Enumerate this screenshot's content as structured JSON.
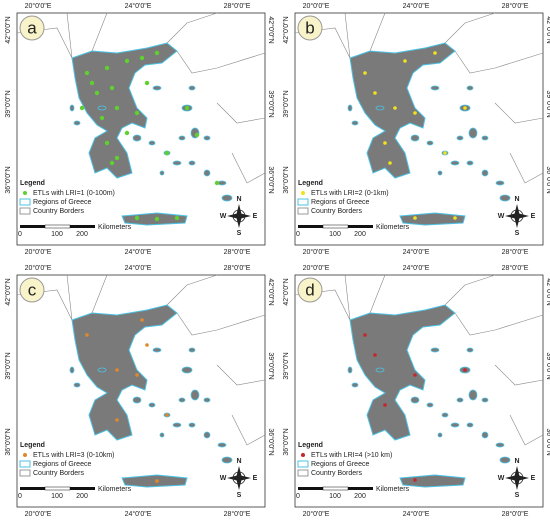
{
  "panels": [
    {
      "label": "a",
      "legend_item": "ETLs with LRI=1 (0-100m)",
      "color": "#5fd12f"
    },
    {
      "label": "b",
      "legend_item": "ETLs with LRI=2 (0-1km)",
      "color": "#f2e21c"
    },
    {
      "label": "c",
      "legend_item": "ETLs with LRI=3 (0-10km)",
      "color": "#e0892b"
    },
    {
      "label": "d",
      "legend_item": "ETLs with LRI=4 (>10 km)",
      "color": "#c2282e"
    }
  ],
  "lon_labels": [
    "20°0'0\"E",
    "24°0'0\"E",
    "28°0'0\"E"
  ],
  "lat_labels": [
    "42°0'0\"N",
    "39°0'0\"N",
    "36°0'0\"N"
  ],
  "legend_title": "Legend",
  "regions_label": "Regions of Greece",
  "borders_label": "Country Borders",
  "scale_ticks": [
    0,
    100,
    200
  ],
  "scale_unit": "Kilometers",
  "compass": [
    "N",
    "E",
    "S",
    "W"
  ]
}
